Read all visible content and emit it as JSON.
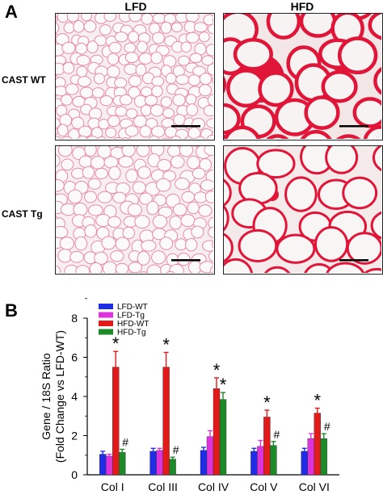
{
  "panel_a": {
    "letter": "A",
    "columns": [
      "LFD",
      "HFD"
    ],
    "rows": [
      "CAST WT",
      "CAST Tg"
    ]
  },
  "panel_b": {
    "letter": "B"
  },
  "colors": {
    "lfd_wt": "#1f2ee6",
    "lfd_tg": "#dd33dd",
    "hfd_wt": "#e31a1a",
    "hfd_tg": "#1d8a2a",
    "stain_light": "#e98aa8",
    "stain_dark": "#e01538",
    "scale_bar": "#000000"
  },
  "chart_data": {
    "type": "bar",
    "ylabel_line1": "Gene / 18S Ratio",
    "ylabel_line2": "(Fold Change vs LFD-WT)",
    "xlabel": "",
    "ylim": [
      0,
      8
    ],
    "yticks": [
      0,
      2,
      4,
      6,
      8
    ],
    "categories": [
      "Col I",
      "Col III",
      "Col IV",
      "Col V",
      "Col VI"
    ],
    "legend_position": "top-left",
    "series": [
      {
        "name": "LFD-WT",
        "values": [
          1.05,
          1.2,
          1.25,
          1.2,
          1.2
        ],
        "errors": [
          0.15,
          0.15,
          0.15,
          0.15,
          0.15
        ],
        "marks": [
          "",
          "",
          "",
          "",
          ""
        ]
      },
      {
        "name": "LFD-Tg",
        "values": [
          0.95,
          1.25,
          1.95,
          1.45,
          1.85
        ],
        "errors": [
          0.1,
          0.1,
          0.3,
          0.3,
          0.25
        ],
        "marks": [
          "",
          "",
          "",
          "",
          ""
        ]
      },
      {
        "name": "HFD-WT",
        "values": [
          5.5,
          5.5,
          4.4,
          2.95,
          3.15
        ],
        "errors": [
          0.8,
          0.75,
          0.55,
          0.35,
          0.25
        ],
        "marks": [
          "*",
          "*",
          "*",
          "*",
          "*"
        ]
      },
      {
        "name": "HFD-Tg",
        "values": [
          1.15,
          0.8,
          3.85,
          1.5,
          1.85
        ],
        "errors": [
          0.15,
          0.1,
          0.35,
          0.2,
          0.25
        ],
        "marks": [
          "#",
          "#",
          "*",
          "#",
          "#"
        ]
      }
    ]
  }
}
